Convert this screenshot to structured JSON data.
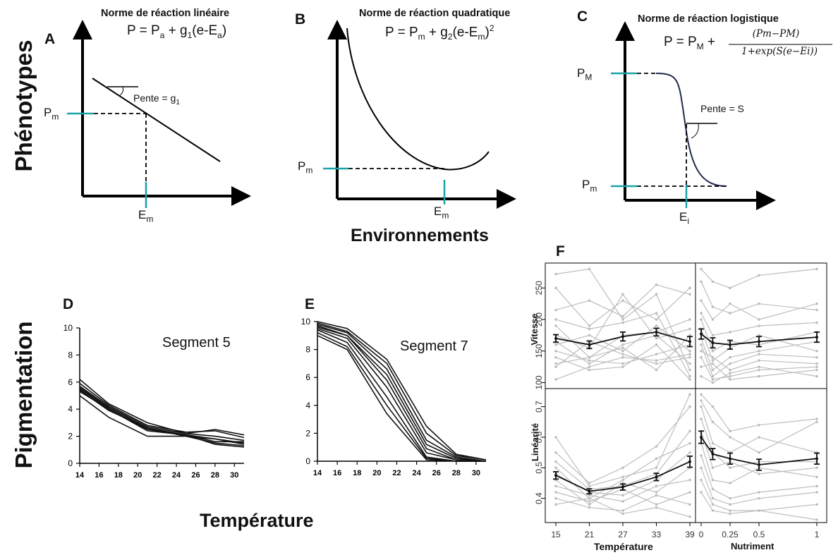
{
  "side_labels": {
    "top": "Phénotypes",
    "bottom": "Pigmentation"
  },
  "panel_letters": [
    "A",
    "B",
    "C",
    "D",
    "E",
    "F"
  ],
  "panel_A": {
    "title": "Norme de réaction linéaire",
    "equation": "P = Pa + g1(e-Ea)",
    "pente_label": "Pente = g1",
    "y_marker": "Pm",
    "x_marker": "Em"
  },
  "panel_B": {
    "title": "Norme de réaction quadratique",
    "equation": "P = Pm + g2(e-Em)2",
    "y_marker": "Pm",
    "x_marker": "Em",
    "x_axis_title": "Environnements"
  },
  "panel_C": {
    "title": "Norme de réaction logistique",
    "equation_lhs": "P = PM +",
    "fraction_num": "(Pm−PM)",
    "fraction_den": "1+exp(S(e−Ei))",
    "pente_label": "Pente = S",
    "y_marker_top": "PM",
    "y_marker_bottom": "Pm",
    "x_marker": "Ei"
  },
  "panel_D_label": "Segment 5",
  "panel_E_label": "Segment 7",
  "bottom_x_title": "Température",
  "panel_F": {
    "ylabel_top": "Vitesse",
    "ylabel_bottom": "Linéarité",
    "xlabel_left": "Température",
    "xlabel_right": "Nutriment"
  },
  "colors": {
    "teal": "#1aa3a8",
    "navy": "#1f2a4d",
    "grey": "#bdbdbd"
  },
  "chart_data": [
    {
      "type": "line",
      "panel": "D",
      "title": "Segment 5",
      "xlabel": "",
      "ylabel": "",
      "xlim": [
        14,
        31
      ],
      "ylim": [
        0,
        10
      ],
      "x_ticks": [
        14,
        16,
        18,
        20,
        22,
        24,
        26,
        28,
        30
      ],
      "y_ticks": [
        0,
        2,
        4,
        6,
        8,
        10
      ],
      "x": [
        14,
        17,
        21,
        25,
        28,
        31
      ],
      "series": [
        {
          "values": [
            6.2,
            4.4,
            3.0,
            2.2,
            2.5,
            2.1
          ]
        },
        {
          "values": [
            5.9,
            4.3,
            2.8,
            2.3,
            2.4,
            1.9
          ]
        },
        {
          "values": [
            5.7,
            4.2,
            2.7,
            2.2,
            2.0,
            1.7
          ]
        },
        {
          "values": [
            5.6,
            4.1,
            2.6,
            2.1,
            1.8,
            1.5
          ]
        },
        {
          "values": [
            5.5,
            4.0,
            2.5,
            2.1,
            1.6,
            1.6
          ]
        },
        {
          "values": [
            5.4,
            3.9,
            2.6,
            2.0,
            1.5,
            1.3
          ]
        },
        {
          "values": [
            5.3,
            4.0,
            2.4,
            2.1,
            1.4,
            1.2
          ]
        },
        {
          "values": [
            5.0,
            3.4,
            2.0,
            2.0,
            1.8,
            1.4
          ]
        }
      ]
    },
    {
      "type": "line",
      "panel": "E",
      "title": "Segment 7",
      "xlabel": "",
      "ylabel": "",
      "xlim": [
        14,
        31
      ],
      "ylim": [
        0,
        10
      ],
      "x_ticks": [
        14,
        16,
        18,
        20,
        22,
        24,
        26,
        28,
        30
      ],
      "y_ticks": [
        0,
        2,
        4,
        6,
        8,
        10
      ],
      "x": [
        14,
        17,
        21,
        25,
        28,
        31
      ],
      "series": [
        {
          "values": [
            10.0,
            9.5,
            7.3,
            2.5,
            0.5,
            0.1
          ]
        },
        {
          "values": [
            9.9,
            9.3,
            7.0,
            2.0,
            0.4,
            0.1
          ]
        },
        {
          "values": [
            9.8,
            9.2,
            6.6,
            1.5,
            0.3,
            0.0
          ]
        },
        {
          "values": [
            9.7,
            9.0,
            6.2,
            1.2,
            0.2,
            0.0
          ]
        },
        {
          "values": [
            9.6,
            9.0,
            5.8,
            0.9,
            0.1,
            0.0
          ]
        },
        {
          "values": [
            9.5,
            8.8,
            5.3,
            0.6,
            0.1,
            0.0
          ]
        },
        {
          "values": [
            9.4,
            8.5,
            4.6,
            0.3,
            0.0,
            0.0
          ]
        },
        {
          "values": [
            9.2,
            8.2,
            4.0,
            0.2,
            0.0,
            0.0
          ]
        },
        {
          "values": [
            9.0,
            8.0,
            3.4,
            0.1,
            0.0,
            0.0
          ]
        }
      ]
    },
    {
      "type": "line",
      "panel": "F-top-left",
      "ylabel": "Vitesse",
      "ylim": [
        95,
        285
      ],
      "y_ticks": [
        100,
        150,
        200,
        250
      ],
      "x": [
        15,
        21,
        27,
        33,
        39
      ],
      "x_ticks": [
        15,
        21,
        27,
        33,
        39
      ],
      "mean": [
        170,
        160,
        173,
        180,
        165
      ],
      "error": [
        6,
        6,
        7,
        6,
        8
      ],
      "individuals": [
        [
          272,
          280,
          200,
          240,
          120
        ],
        [
          250,
          190,
          230,
          200,
          250
        ],
        [
          215,
          230,
          205,
          255,
          240
        ],
        [
          200,
          185,
          195,
          210,
          110
        ],
        [
          190,
          140,
          175,
          180,
          200
        ],
        [
          175,
          155,
          240,
          170,
          185
        ],
        [
          165,
          130,
          160,
          175,
          130
        ],
        [
          160,
          175,
          150,
          190,
          150
        ],
        [
          150,
          135,
          130,
          145,
          160
        ],
        [
          140,
          120,
          125,
          160,
          105
        ],
        [
          130,
          140,
          155,
          120,
          175
        ],
        [
          125,
          165,
          145,
          130,
          140
        ],
        [
          105,
          125,
          140,
          135,
          145
        ]
      ]
    },
    {
      "type": "line",
      "panel": "F-top-right",
      "ylabel": "Vitesse",
      "ylim": [
        95,
        285
      ],
      "x": [
        0,
        0.1,
        0.25,
        0.5,
        1
      ],
      "x_ticks": [
        0,
        0.25,
        0.5,
        1
      ],
      "mean": [
        177,
        163,
        160,
        165,
        172
      ],
      "error": [
        8,
        8,
        7,
        8,
        8
      ],
      "individuals": [
        [
          280,
          260,
          250,
          270,
          280
        ],
        [
          260,
          220,
          210,
          225,
          215
        ],
        [
          230,
          200,
          225,
          200,
          225
        ],
        [
          210,
          175,
          180,
          190,
          195
        ],
        [
          200,
          150,
          165,
          160,
          180
        ],
        [
          185,
          135,
          155,
          175,
          150
        ],
        [
          170,
          120,
          140,
          150,
          165
        ],
        [
          160,
          110,
          130,
          145,
          140
        ],
        [
          150,
          140,
          120,
          135,
          130
        ],
        [
          140,
          105,
          110,
          120,
          125
        ],
        [
          125,
          130,
          105,
          110,
          120
        ],
        [
          110,
          100,
          115,
          125,
          110
        ]
      ]
    },
    {
      "type": "line",
      "panel": "F-bottom-left",
      "ylabel": "Linéarité",
      "xlabel": "Température",
      "ylim": [
        0.33,
        0.75
      ],
      "y_ticks": [
        0.4,
        0.5,
        0.6,
        0.7
      ],
      "x": [
        15,
        21,
        27,
        33,
        39
      ],
      "x_ticks": [
        15,
        21,
        27,
        33,
        39
      ],
      "mean": [
        0.475,
        0.423,
        0.437,
        0.47,
        0.52
      ],
      "error": [
        0.012,
        0.008,
        0.01,
        0.012,
        0.018
      ],
      "individuals": [
        [
          0.6,
          0.44,
          0.47,
          0.5,
          0.74
        ],
        [
          0.55,
          0.45,
          0.5,
          0.57,
          0.7
        ],
        [
          0.52,
          0.43,
          0.44,
          0.48,
          0.62
        ],
        [
          0.5,
          0.4,
          0.46,
          0.53,
          0.58
        ],
        [
          0.48,
          0.42,
          0.41,
          0.46,
          0.55
        ],
        [
          0.46,
          0.38,
          0.45,
          0.42,
          0.5
        ],
        [
          0.44,
          0.41,
          0.39,
          0.44,
          0.46
        ],
        [
          0.42,
          0.39,
          0.43,
          0.38,
          0.42
        ],
        [
          0.4,
          0.37,
          0.36,
          0.41,
          0.38
        ],
        [
          0.38,
          0.4,
          0.35,
          0.37,
          0.34
        ]
      ]
    },
    {
      "type": "line",
      "panel": "F-bottom-right",
      "ylabel": "Linéarité",
      "xlabel": "Nutriment",
      "ylim": [
        0.33,
        0.75
      ],
      "x": [
        0,
        0.1,
        0.25,
        0.5,
        1
      ],
      "x_ticks": [
        0,
        0.25,
        0.5,
        1
      ],
      "mean": [
        0.6,
        0.545,
        0.53,
        0.51,
        0.53
      ],
      "error": [
        0.02,
        0.018,
        0.018,
        0.018,
        0.018
      ],
      "individuals": [
        [
          0.74,
          0.7,
          0.62,
          0.64,
          0.66
        ],
        [
          0.72,
          0.65,
          0.6,
          0.55,
          0.65
        ],
        [
          0.7,
          0.58,
          0.55,
          0.6,
          0.55
        ],
        [
          0.66,
          0.55,
          0.5,
          0.52,
          0.52
        ],
        [
          0.62,
          0.5,
          0.52,
          0.48,
          0.5
        ],
        [
          0.58,
          0.46,
          0.45,
          0.5,
          0.47
        ],
        [
          0.54,
          0.43,
          0.4,
          0.42,
          0.44
        ],
        [
          0.5,
          0.4,
          0.38,
          0.4,
          0.42
        ],
        [
          0.46,
          0.38,
          0.36,
          0.36,
          0.38
        ],
        [
          0.42,
          0.36,
          0.35,
          0.36,
          0.33
        ]
      ]
    }
  ]
}
